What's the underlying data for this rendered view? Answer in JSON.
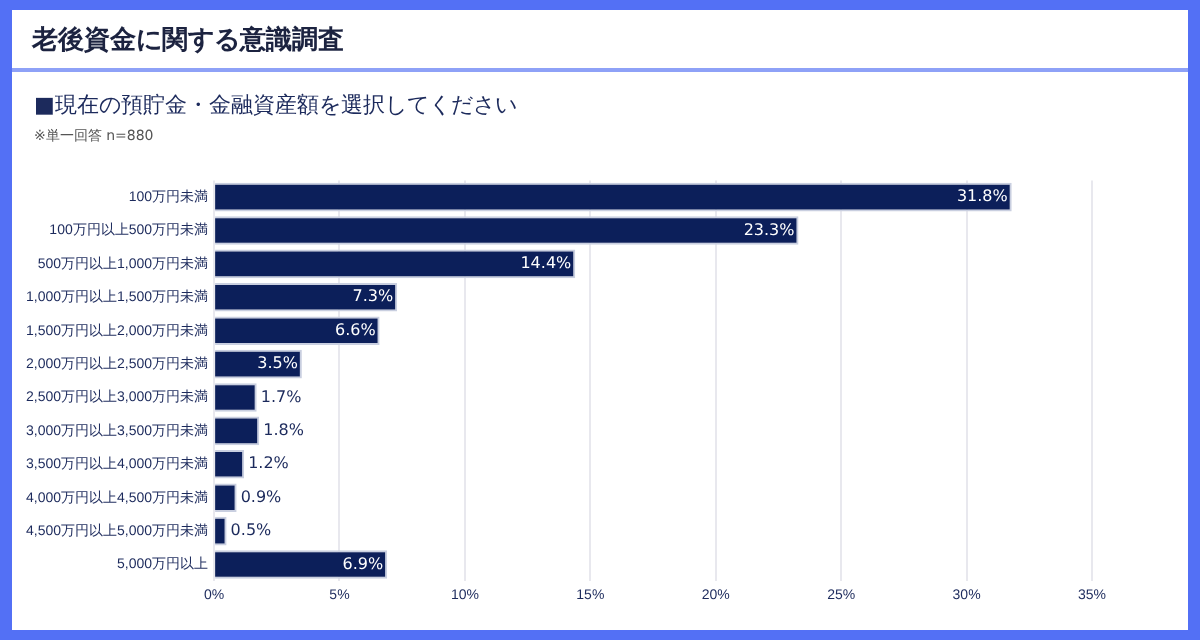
{
  "chart_data": {
    "type": "bar",
    "orientation": "horizontal",
    "title": "老後資金に関する意識調査",
    "subtitle": "■現在の預貯金・金融資産額を選択してください",
    "annotations": [
      "※単一回答 n=880"
    ],
    "categories": [
      "100万円未満",
      "100万円以上500万円未満",
      "500万円以上1,000万円未満",
      "1,000万円以上1,500万円未満",
      "1,500万円以上2,000万円未満",
      "2,000万円以上2,500万円未満",
      "2,500万円以上3,000万円未満",
      "3,000万円以上3,500万円未満",
      "3,500万円以上4,000万円未満",
      "4,000万円以上4,500万円未満",
      "4,500万円以上5,000万円未満",
      "5,000万円以上"
    ],
    "values": [
      31.8,
      23.3,
      14.4,
      7.3,
      6.6,
      3.5,
      1.7,
      1.8,
      1.2,
      0.9,
      0.5,
      6.9
    ],
    "value_labels": [
      "31.8%",
      "23.3%",
      "14.4%",
      "7.3%",
      "6.6%",
      "3.5%",
      "1.7%",
      "1.8%",
      "1.2%",
      "0.9%",
      "0.5%",
      "6.9%"
    ],
    "color": "#0c1f5a",
    "xlim": [
      0,
      35
    ],
    "xticks": [
      {
        "value": 0,
        "label": "0%"
      },
      {
        "value": 5,
        "label": "5%"
      },
      {
        "value": 10,
        "label": "10%"
      },
      {
        "value": 15,
        "label": "15%"
      },
      {
        "value": 20,
        "label": "20%"
      },
      {
        "value": 25,
        "label": "25%"
      },
      {
        "value": 30,
        "label": "30%"
      },
      {
        "value": 35,
        "label": "35%"
      }
    ],
    "grid": "x",
    "legend": false
  }
}
